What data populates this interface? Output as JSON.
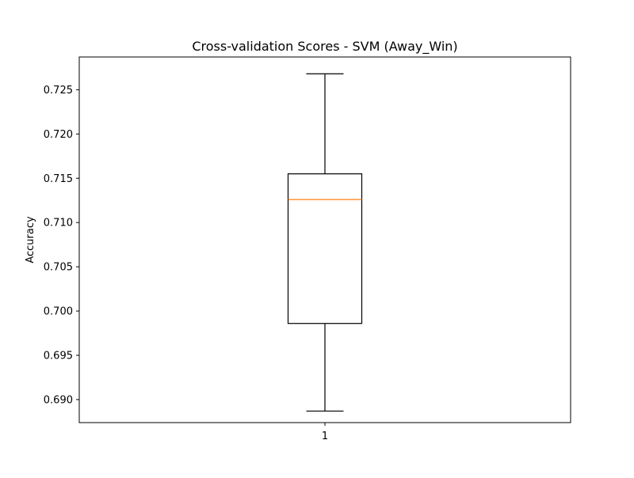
{
  "chart_data": {
    "type": "boxplot",
    "title": "Cross-validation Scores - SVM (Away_Win)",
    "xlabel": "",
    "ylabel": "Accuracy",
    "categories": [
      "1"
    ],
    "ylim": [
      0.6874,
      0.7287
    ],
    "yticks": [
      0.69,
      0.695,
      0.7,
      0.705,
      0.71,
      0.715,
      0.72,
      0.725
    ],
    "ytick_labels": [
      "0.690",
      "0.695",
      "0.700",
      "0.705",
      "0.710",
      "0.715",
      "0.720",
      "0.725"
    ],
    "boxes": [
      {
        "category": "1",
        "whisker_low": 0.6887,
        "q1": 0.6986,
        "median": 0.7126,
        "q3": 0.7155,
        "whisker_high": 0.7268
      }
    ],
    "grid": false,
    "colors": {
      "box": "#000000",
      "median": "#ff7f0e",
      "background": "#ffffff"
    }
  }
}
